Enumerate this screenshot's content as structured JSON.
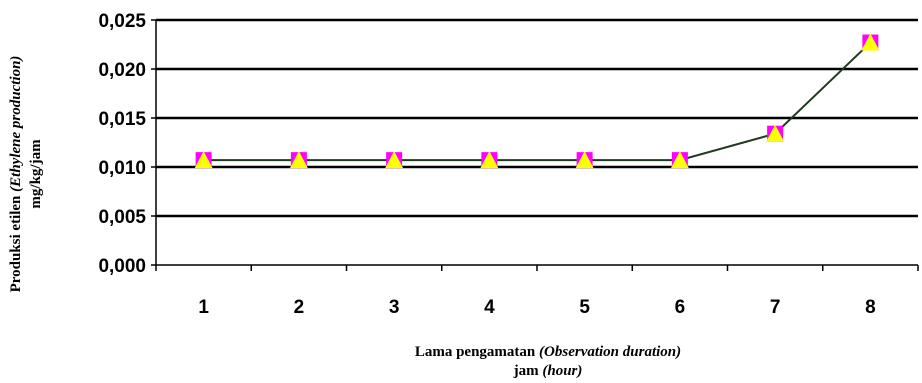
{
  "chart_data": {
    "type": "line",
    "categories": [
      "1",
      "2",
      "3",
      "4",
      "5",
      "6",
      "7",
      "8"
    ],
    "series": [
      {
        "values": [
          0.0107,
          0.0107,
          0.0107,
          0.0107,
          0.0107,
          0.0107,
          0.0134,
          0.0227
        ]
      }
    ],
    "y_ticks": [
      "0,000",
      "0,005",
      "0,010",
      "0,015",
      "0,020",
      "0,025"
    ],
    "ylim": [
      0,
      0.025
    ],
    "xlabel_line1_main": "Lama pengamatan ",
    "xlabel_line1_italic": "(Observation duration)",
    "xlabel_line2_main": "jam ",
    "xlabel_line2_italic": "(hour)",
    "ylabel_line1_main": "Produksi etilen ",
    "ylabel_line1_italic": "(Ethylene production)",
    "ylabel_line2": "mg/kg/jam",
    "grid": true,
    "line_color": "#1f3a1f",
    "marker_fill": "#ffff00",
    "marker_stroke": "#ff00ff"
  }
}
